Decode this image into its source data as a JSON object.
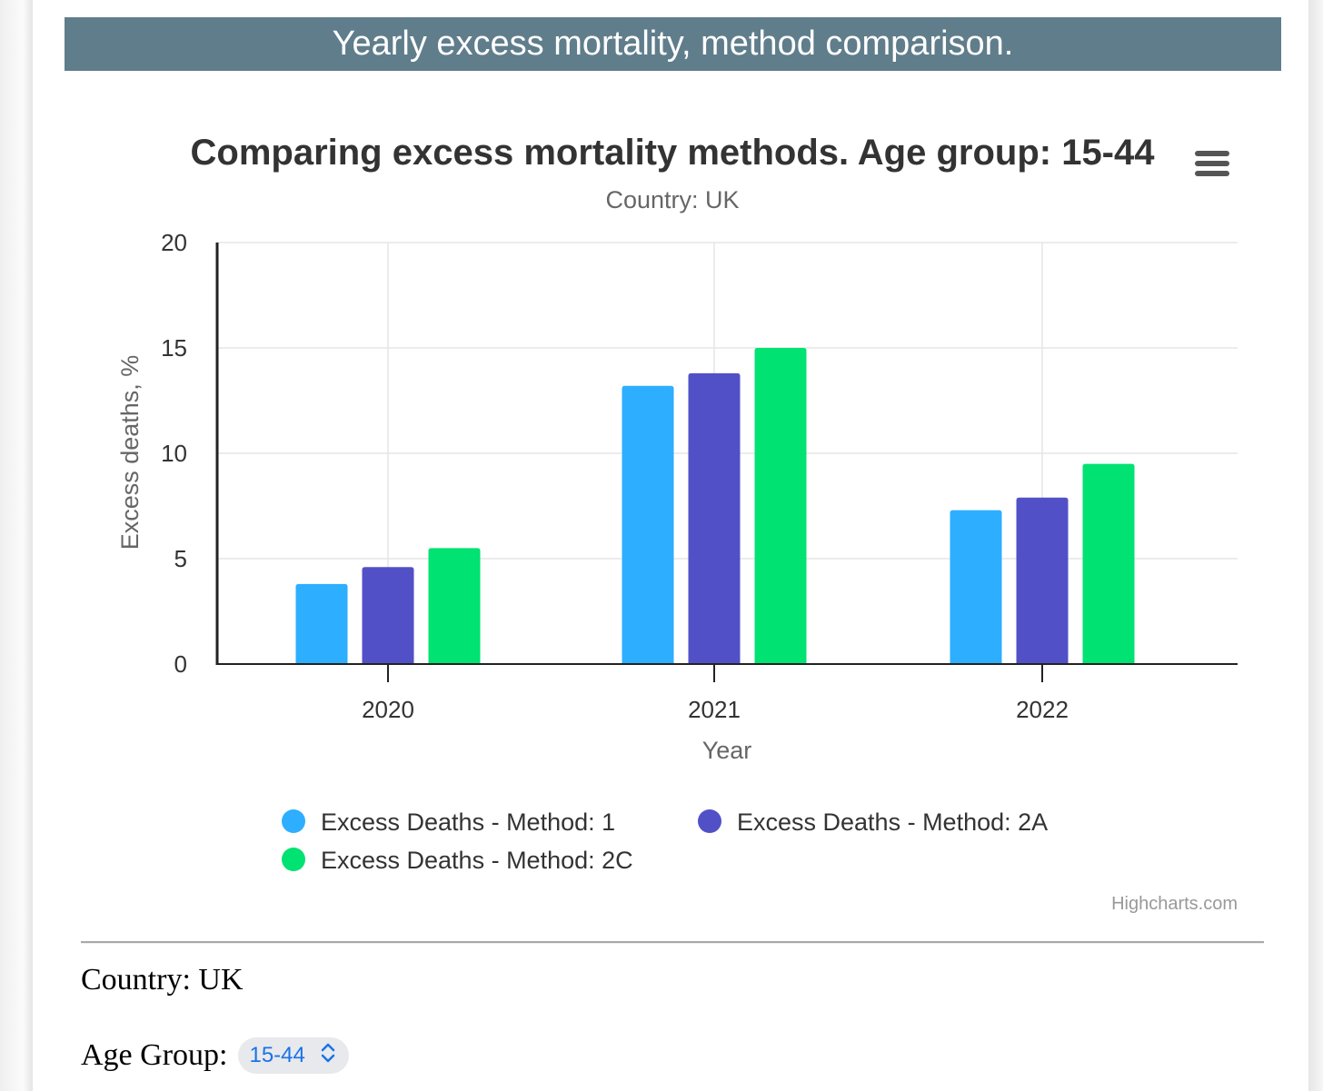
{
  "banner": {
    "title": "Yearly excess mortality, method comparison."
  },
  "chart_data": {
    "type": "bar",
    "title": "Comparing excess mortality methods. Age group: 15-44",
    "subtitle": "Country: UK",
    "xlabel": "Year",
    "ylabel": "Excess deaths, %",
    "categories": [
      "2020",
      "2021",
      "2022"
    ],
    "ylim": [
      0,
      20
    ],
    "yticks": [
      0,
      5,
      10,
      15,
      20
    ],
    "grid": true,
    "legend_position": "bottom",
    "series": [
      {
        "name": "Excess Deaths - Method: 1",
        "color": "#2eaeff",
        "values": [
          3.8,
          13.2,
          7.3
        ]
      },
      {
        "name": "Excess Deaths - Method: 2A",
        "color": "#5250c7",
        "values": [
          4.6,
          13.8,
          7.9
        ]
      },
      {
        "name": "Excess Deaths - Method: 2C",
        "color": "#00e272",
        "values": [
          5.5,
          15.0,
          9.5
        ]
      }
    ],
    "credits": "Highcharts.com",
    "menu_icon": "hamburger-menu-icon"
  },
  "form": {
    "country_text": "Country: UK",
    "age_label": "Age Group:",
    "age_value": "15-44",
    "age_icon": "up-down-chevron-icon"
  }
}
